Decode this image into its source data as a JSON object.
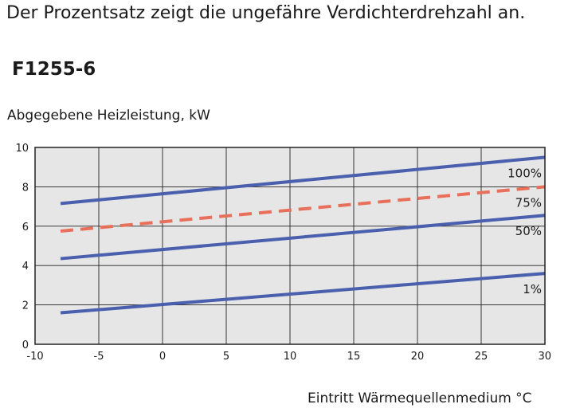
{
  "header": {
    "intro_text": "Der Prozentsatz zeigt die ungefähre Verdichterdrehzahl an.",
    "model": "F1255-6"
  },
  "chart_data": {
    "type": "line",
    "ylabel": "Abgegebene Heizleistung, kW",
    "xlabel": "Eintritt Wärmequellenmedium °C",
    "xlim": [
      -10,
      30
    ],
    "ylim": [
      0,
      10
    ],
    "xticks": [
      -10,
      -5,
      0,
      5,
      10,
      15,
      20,
      25,
      30
    ],
    "yticks": [
      0,
      2,
      4,
      6,
      8,
      10
    ],
    "grid": true,
    "plot_background": "#e6e6e6",
    "series": [
      {
        "name": "100%",
        "x": [
          -8,
          30
        ],
        "y": [
          7.15,
          9.5
        ],
        "color": "#4a5fae",
        "dashed": false
      },
      {
        "name": "75%",
        "x": [
          -8,
          30
        ],
        "y": [
          5.75,
          8.0
        ],
        "color": "#e8705a",
        "dashed": true
      },
      {
        "name": "50%",
        "x": [
          -8,
          30
        ],
        "y": [
          4.35,
          6.55
        ],
        "color": "#4a5fae",
        "dashed": false
      },
      {
        "name": "1%",
        "x": [
          -8,
          30
        ],
        "y": [
          1.6,
          3.6
        ],
        "color": "#4a5fae",
        "dashed": false
      }
    ]
  }
}
